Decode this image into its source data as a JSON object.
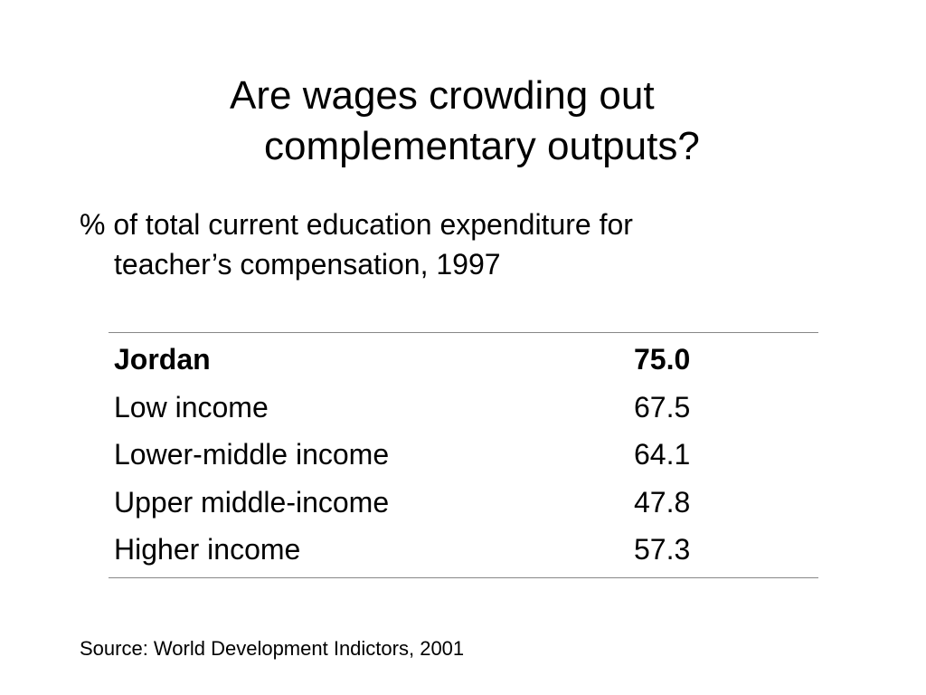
{
  "slide": {
    "title_line1": "Are wages crowding out",
    "title_line2": "complementary outputs?",
    "subtitle_line1": "% of total current education expenditure for",
    "subtitle_line2": "teacher’s compensation, 1997",
    "source": "Source: World Development Indictors, 2001"
  },
  "table": {
    "rows": [
      {
        "label": "Jordan",
        "value": "75.0",
        "bold": true
      },
      {
        "label": "Low income",
        "value": "67.5",
        "bold": false
      },
      {
        "label": "Lower-middle income",
        "value": "64.1",
        "bold": false
      },
      {
        "label": "Upper middle-income",
        "value": "47.8",
        "bold": false
      },
      {
        "label": "Higher income",
        "value": "57.3",
        "bold": false
      }
    ]
  }
}
